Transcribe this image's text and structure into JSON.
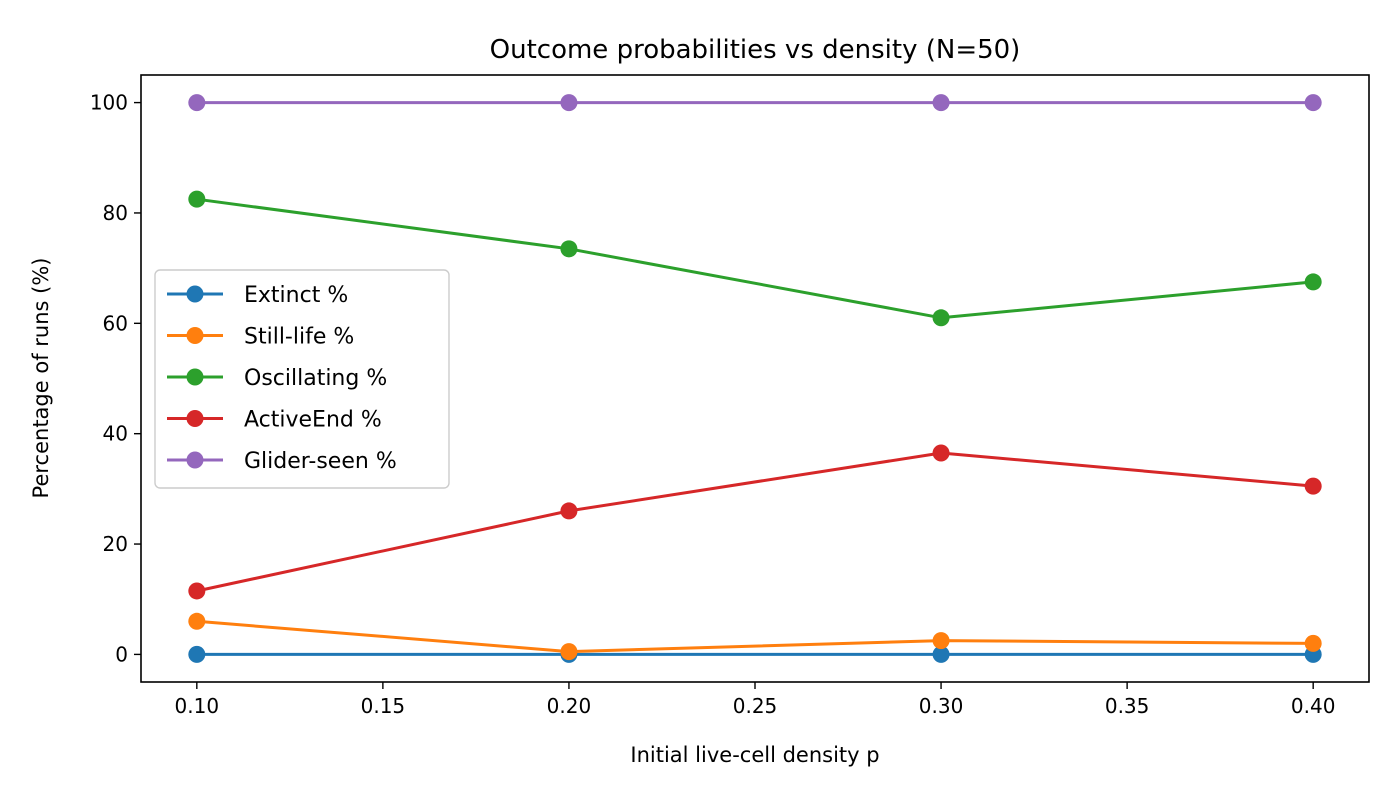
{
  "chart_data": {
    "type": "line",
    "title": "Outcome probabilities vs density (N=50)",
    "xlabel": "Initial live-cell density p",
    "ylabel": "Percentage of runs (%)",
    "xlim": [
      0.085,
      0.415
    ],
    "ylim": [
      -5,
      105
    ],
    "xticks": [
      0.1,
      0.15,
      0.2,
      0.25,
      0.3,
      0.35,
      0.4
    ],
    "xtick_labels": [
      "0.10",
      "0.15",
      "0.20",
      "0.25",
      "0.30",
      "0.35",
      "0.40"
    ],
    "yticks": [
      0,
      20,
      40,
      60,
      80,
      100
    ],
    "ytick_labels": [
      "0",
      "20",
      "40",
      "60",
      "80",
      "100"
    ],
    "grid": false,
    "legend_position": "center-left",
    "x": [
      0.1,
      0.2,
      0.3,
      0.4
    ],
    "series": [
      {
        "name": "Extinct %",
        "color": "#1f77b4",
        "values": [
          0,
          0,
          0,
          0
        ]
      },
      {
        "name": "Still-life %",
        "color": "#ff7f0e",
        "values": [
          6,
          0.5,
          2.5,
          2
        ]
      },
      {
        "name": "Oscillating %",
        "color": "#2ca02c",
        "values": [
          82.5,
          73.5,
          61,
          67.5
        ]
      },
      {
        "name": "ActiveEnd %",
        "color": "#d62728",
        "values": [
          11.5,
          26,
          36.5,
          30.5
        ]
      },
      {
        "name": "Glider-seen %",
        "color": "#9467bd",
        "values": [
          100,
          100,
          100,
          100
        ]
      }
    ]
  }
}
